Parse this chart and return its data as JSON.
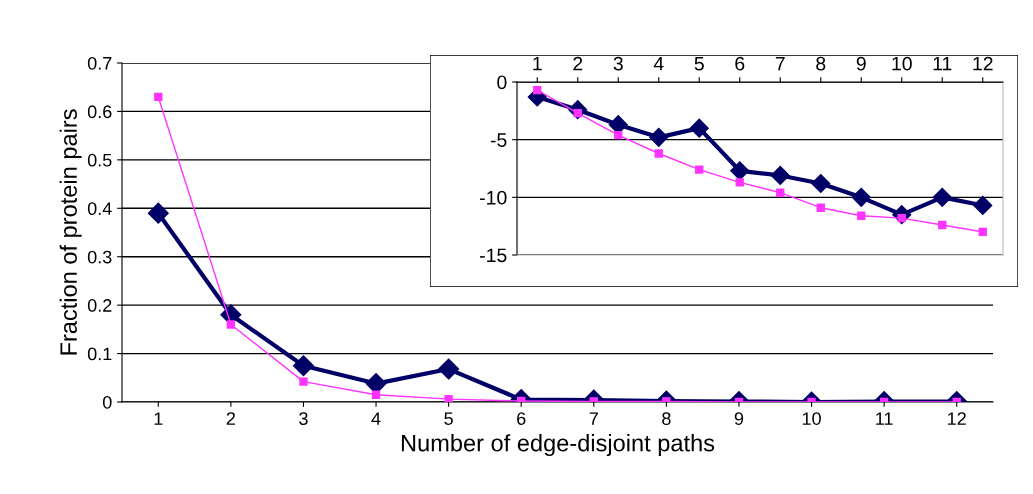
{
  "chart_data": [
    {
      "type": "line",
      "xlabel": "Number of edge-disjoint paths",
      "ylabel": "Fraction of protein pairs",
      "categories": [
        "1",
        "2",
        "3",
        "4",
        "5",
        "6",
        "7",
        "8",
        "9",
        "10",
        "11",
        "12"
      ],
      "ylim": [
        0,
        0.7
      ],
      "yticks": [
        0,
        0.1,
        0.2,
        0.3,
        0.4,
        0.5,
        0.6,
        0.7
      ],
      "grid": "y",
      "line_style": "solid",
      "series": [
        {
          "color": "#000066",
          "marker": "diamond",
          "values": [
            0.39,
            0.18,
            0.075,
            0.038,
            0.068,
            0.005,
            0.004,
            0.002,
            0.001,
            0,
            0.001,
            0.001
          ]
        },
        {
          "color": "#ff33ff",
          "marker": "square",
          "values": [
            0.63,
            0.16,
            0.042,
            0.015,
            0.006,
            0.002,
            0.001,
            0.001,
            0,
            0,
            0,
            0
          ]
        }
      ]
    },
    {
      "type": "line",
      "categories": [
        "1",
        "2",
        "3",
        "4",
        "5",
        "6",
        "7",
        "8",
        "9",
        "10",
        "11",
        "12"
      ],
      "ylim": [
        -15,
        0
      ],
      "yticks": [
        -15,
        -10,
        -5,
        0
      ],
      "grid": "y",
      "line_style": "solid",
      "series": [
        {
          "color": "#000066",
          "marker": "diamond",
          "values": [
            -1.3,
            -2.4,
            -3.7,
            -4.8,
            -4.0,
            -7.7,
            -8.1,
            -8.8,
            -10.0,
            -11.5,
            -10.0,
            -10.7
          ]
        },
        {
          "color": "#ff33ff",
          "marker": "square",
          "values": [
            -0.7,
            -2.7,
            -4.6,
            -6.2,
            -7.6,
            -8.7,
            -9.6,
            -10.9,
            -11.6,
            -11.8,
            -12.4,
            -13.0
          ]
        }
      ]
    }
  ]
}
